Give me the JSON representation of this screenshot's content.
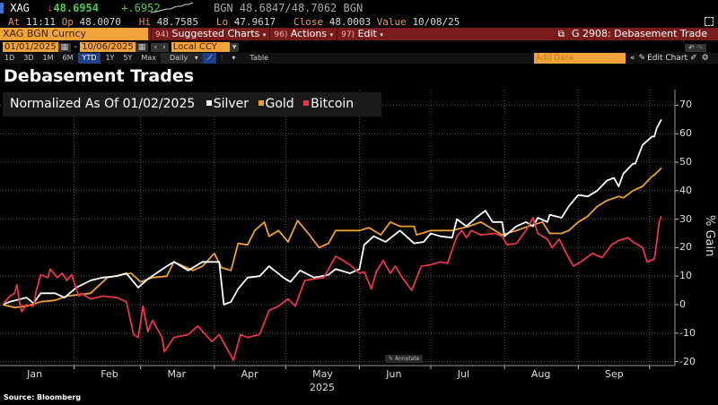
{
  "quote": {
    "ticker": "XAG",
    "direction_icon": "down-arrow-icon",
    "last": "48.6954",
    "change": "+.6952",
    "bid_source": "BGN",
    "bid_ask": "48.6847/48.7062",
    "ask_source": "BGN",
    "at_label": "At",
    "time": "11:11",
    "op_label": "Op",
    "open": "48.0070",
    "hi_label": "Hi",
    "high": "48.7585",
    "lo_label": "Lo",
    "low": "47.9617",
    "close_label": "Close",
    "close": "48.0003",
    "value_label": "Value",
    "value_date": "10/08/25"
  },
  "toolbar": {
    "security": "XAG BGN Curncy",
    "suggested_num": "94)",
    "suggested": "Suggested Charts",
    "actions_num": "96)",
    "actions": "Actions",
    "edit_num": "97)",
    "edit": "Edit",
    "chart_id": "G 2908: Debasement Trade"
  },
  "range": {
    "start": "01/01/2025",
    "end": "10/06/2025",
    "currency": "Local CCY",
    "sep": "-"
  },
  "periods": [
    "1D",
    "3D",
    "1M",
    "6M",
    "YTD",
    "1Y",
    "5Y",
    "Max"
  ],
  "selected_period": "YTD",
  "frequency": "Daily",
  "table_label": "Table",
  "add_data_placeholder": "Add Data",
  "edit_chart": "Edit Chart",
  "colors": {
    "silver": "#ffffff",
    "gold": "#f0a030",
    "bitcoin": "#e8364a",
    "toolbar_red": "#7b1c1c",
    "field_orange": "#f0a33a"
  },
  "source": "Source: Bloomberg",
  "annotate": "Annotate",
  "chart_data": {
    "type": "line",
    "title": "Debasement Trades",
    "subtitle": "Normalized As Of 01/02/2025",
    "ylabel": "% Gain",
    "xlabel": "2025",
    "ylim": [
      -20,
      70
    ],
    "yticks": [
      70,
      60,
      50,
      40,
      30,
      20,
      10,
      0,
      -10,
      -20
    ],
    "xticks": [
      "Jan",
      "Feb",
      "Mar",
      "Apr",
      "May",
      "Jun",
      "Jul",
      "Aug",
      "Sep"
    ],
    "grid": true,
    "legend": "top-left",
    "series": [
      {
        "name": "Silver",
        "color": "#ffffff",
        "points": [
          [
            "2025-01-02",
            0
          ],
          [
            "2025-01-05",
            1
          ],
          [
            "2025-01-12",
            2.5
          ],
          [
            "2025-01-15",
            0.5
          ],
          [
            "2025-01-18",
            4
          ],
          [
            "2025-01-24",
            4
          ],
          [
            "2025-01-28",
            2.5
          ],
          [
            "2025-02-02",
            6
          ],
          [
            "2025-02-08",
            8.5
          ],
          [
            "2025-02-13",
            9.5
          ],
          [
            "2025-02-19",
            10
          ],
          [
            "2025-02-23",
            11
          ],
          [
            "2025-02-28",
            6
          ],
          [
            "2025-03-04",
            9
          ],
          [
            "2025-03-12",
            13.5
          ],
          [
            "2025-03-15",
            15
          ],
          [
            "2025-03-21",
            12
          ],
          [
            "2025-03-27",
            15
          ],
          [
            "2025-03-31",
            15
          ],
          [
            "2025-04-03",
            15
          ],
          [
            "2025-04-05",
            0
          ],
          [
            "2025-04-08",
            1
          ],
          [
            "2025-04-11",
            5.5
          ],
          [
            "2025-04-15",
            9.5
          ],
          [
            "2025-04-20",
            10
          ],
          [
            "2025-04-24",
            13.5
          ],
          [
            "2025-04-30",
            9.5
          ],
          [
            "2025-05-03",
            8
          ],
          [
            "2025-05-07",
            12
          ],
          [
            "2025-05-13",
            9.5
          ],
          [
            "2025-05-19",
            10.5
          ],
          [
            "2025-05-22",
            12.5
          ],
          [
            "2025-05-28",
            11
          ],
          [
            "2025-06-01",
            12.5
          ],
          [
            "2025-06-03",
            21
          ],
          [
            "2025-06-07",
            24
          ],
          [
            "2025-06-12",
            22
          ],
          [
            "2025-06-18",
            26
          ],
          [
            "2025-06-24",
            21.5
          ],
          [
            "2025-06-28",
            22
          ],
          [
            "2025-07-01",
            25
          ],
          [
            "2025-07-05",
            24
          ],
          [
            "2025-07-10",
            23.5
          ],
          [
            "2025-07-12",
            30
          ],
          [
            "2025-07-16",
            27.5
          ],
          [
            "2025-07-20",
            30.5
          ],
          [
            "2025-07-24",
            33
          ],
          [
            "2025-07-27",
            29
          ],
          [
            "2025-07-31",
            29
          ],
          [
            "2025-08-01",
            24
          ],
          [
            "2025-08-06",
            27.5
          ],
          [
            "2025-08-10",
            29
          ],
          [
            "2025-08-13",
            27.5
          ],
          [
            "2025-08-15",
            30.5
          ],
          [
            "2025-08-19",
            29
          ],
          [
            "2025-08-20",
            31.5
          ],
          [
            "2025-08-25",
            30.5
          ],
          [
            "2025-08-28",
            34.5
          ],
          [
            "2025-09-01",
            38.5
          ],
          [
            "2025-09-05",
            38
          ],
          [
            "2025-09-09",
            40
          ],
          [
            "2025-09-13",
            43.5
          ],
          [
            "2025-09-16",
            44.5
          ],
          [
            "2025-09-18",
            41.5
          ],
          [
            "2025-09-20",
            46
          ],
          [
            "2025-09-24",
            49.5
          ],
          [
            "2025-09-25",
            49.5
          ],
          [
            "2025-09-28",
            56
          ],
          [
            "2025-10-02",
            59
          ],
          [
            "2025-10-03",
            59
          ],
          [
            "2025-10-04",
            62
          ],
          [
            "2025-10-06",
            65
          ]
        ]
      },
      {
        "name": "Gold",
        "color": "#f0a030",
        "points": [
          [
            "2025-01-02",
            0
          ],
          [
            "2025-01-07",
            -1
          ],
          [
            "2025-01-12",
            -0.5
          ],
          [
            "2025-01-18",
            1
          ],
          [
            "2025-01-24",
            1.5
          ],
          [
            "2025-01-29",
            3
          ],
          [
            "2025-02-08",
            4
          ],
          [
            "2025-02-15",
            9.5
          ],
          [
            "2025-02-21",
            10.5
          ],
          [
            "2025-02-25",
            11
          ],
          [
            "2025-03-01",
            8
          ],
          [
            "2025-03-06",
            9.5
          ],
          [
            "2025-03-12",
            10
          ],
          [
            "2025-03-15",
            15
          ],
          [
            "2025-03-23",
            12
          ],
          [
            "2025-03-27",
            13.5
          ],
          [
            "2025-04-01",
            18
          ],
          [
            "2025-04-04",
            13
          ],
          [
            "2025-04-08",
            12
          ],
          [
            "2025-04-11",
            21.5
          ],
          [
            "2025-04-15",
            21
          ],
          [
            "2025-04-18",
            26
          ],
          [
            "2025-04-22",
            29
          ],
          [
            "2025-04-24",
            24
          ],
          [
            "2025-04-28",
            26
          ],
          [
            "2025-05-02",
            22
          ],
          [
            "2025-05-06",
            29.5
          ],
          [
            "2025-05-11",
            24.5
          ],
          [
            "2025-05-15",
            20
          ],
          [
            "2025-05-19",
            21.5
          ],
          [
            "2025-05-22",
            26
          ],
          [
            "2025-05-28",
            26
          ],
          [
            "2025-06-01",
            26
          ],
          [
            "2025-06-05",
            27
          ],
          [
            "2025-06-10",
            24.5
          ],
          [
            "2025-06-14",
            29
          ],
          [
            "2025-06-18",
            27.5
          ],
          [
            "2025-06-24",
            27.5
          ],
          [
            "2025-06-25",
            24.5
          ],
          [
            "2025-07-01",
            26
          ],
          [
            "2025-07-05",
            26
          ],
          [
            "2025-07-10",
            26
          ],
          [
            "2025-07-17",
            27.5
          ],
          [
            "2025-07-22",
            29
          ],
          [
            "2025-07-26",
            27
          ],
          [
            "2025-07-31",
            24.5
          ],
          [
            "2025-08-06",
            26
          ],
          [
            "2025-08-11",
            27.5
          ],
          [
            "2025-08-17",
            29
          ],
          [
            "2025-08-20",
            25
          ],
          [
            "2025-08-25",
            25
          ],
          [
            "2025-08-28",
            26
          ],
          [
            "2025-09-01",
            29
          ],
          [
            "2025-09-05",
            31
          ],
          [
            "2025-09-09",
            34.5
          ],
          [
            "2025-09-13",
            36.5
          ],
          [
            "2025-09-18",
            38
          ],
          [
            "2025-09-20",
            37.5
          ],
          [
            "2025-09-24",
            40
          ],
          [
            "2025-09-28",
            41.5
          ],
          [
            "2025-10-02",
            45
          ],
          [
            "2025-10-03",
            45.5
          ],
          [
            "2025-10-06",
            48
          ]
        ]
      },
      {
        "name": "Bitcoin",
        "color": "#e8364a",
        "points": [
          [
            "2025-01-02",
            0
          ],
          [
            "2025-01-05",
            3
          ],
          [
            "2025-01-07",
            4
          ],
          [
            "2025-01-08",
            7
          ],
          [
            "2025-01-09",
            1
          ],
          [
            "2025-01-10",
            -2.5
          ],
          [
            "2025-01-12",
            0
          ],
          [
            "2025-01-15",
            -0.5
          ],
          [
            "2025-01-16",
            4.5
          ],
          [
            "2025-01-18",
            10.5
          ],
          [
            "2025-01-21",
            9.5
          ],
          [
            "2025-01-22",
            12.5
          ],
          [
            "2025-01-25",
            9.5
          ],
          [
            "2025-01-27",
            11
          ],
          [
            "2025-01-29",
            8.5
          ],
          [
            "2025-01-31",
            10.5
          ],
          [
            "2025-02-03",
            3
          ],
          [
            "2025-02-04",
            4
          ],
          [
            "2025-02-08",
            2
          ],
          [
            "2025-02-13",
            3
          ],
          [
            "2025-02-19",
            2.5
          ],
          [
            "2025-02-23",
            1
          ],
          [
            "2025-02-26",
            -10.5
          ],
          [
            "2025-02-28",
            -11.5
          ],
          [
            "2025-03-02",
            -0.5
          ],
          [
            "2025-03-04",
            -9.5
          ],
          [
            "2025-03-06",
            -5.5
          ],
          [
            "2025-03-10",
            -11.5
          ],
          [
            "2025-03-11",
            -16.5
          ],
          [
            "2025-03-15",
            -11.5
          ],
          [
            "2025-03-21",
            -10.5
          ],
          [
            "2025-03-25",
            -7.5
          ],
          [
            "2025-03-31",
            -13
          ],
          [
            "2025-04-03",
            -10.5
          ],
          [
            "2025-04-07",
            -16.5
          ],
          [
            "2025-04-09",
            -19.5
          ],
          [
            "2025-04-12",
            -10.5
          ],
          [
            "2025-04-15",
            -11.5
          ],
          [
            "2025-04-20",
            -10.5
          ],
          [
            "2025-04-24",
            -2
          ],
          [
            "2025-04-28",
            -0.5
          ],
          [
            "2025-05-02",
            2
          ],
          [
            "2025-05-05",
            -0.5
          ],
          [
            "2025-05-09",
            8.5
          ],
          [
            "2025-05-13",
            9
          ],
          [
            "2025-05-17",
            9.5
          ],
          [
            "2025-05-22",
            17
          ],
          [
            "2025-05-26",
            15
          ],
          [
            "2025-05-28",
            14
          ],
          [
            "2025-06-01",
            11
          ],
          [
            "2025-06-03",
            11.5
          ],
          [
            "2025-06-06",
            5.5
          ],
          [
            "2025-06-08",
            11.5
          ],
          [
            "2025-06-11",
            15.5
          ],
          [
            "2025-06-14",
            11
          ],
          [
            "2025-06-16",
            13.5
          ],
          [
            "2025-06-19",
            9.5
          ],
          [
            "2025-06-23",
            5
          ],
          [
            "2025-06-27",
            13.5
          ],
          [
            "2025-07-01",
            14
          ],
          [
            "2025-07-05",
            15
          ],
          [
            "2025-07-08",
            14.5
          ],
          [
            "2025-07-12",
            24
          ],
          [
            "2025-07-14",
            26
          ],
          [
            "2025-07-16",
            23.5
          ],
          [
            "2025-07-18",
            26
          ],
          [
            "2025-07-22",
            24.5
          ],
          [
            "2025-07-28",
            25
          ],
          [
            "2025-07-31",
            24
          ],
          [
            "2025-08-02",
            21
          ],
          [
            "2025-08-06",
            21.5
          ],
          [
            "2025-08-10",
            26
          ],
          [
            "2025-08-13",
            30.5
          ],
          [
            "2025-08-15",
            25
          ],
          [
            "2025-08-19",
            23
          ],
          [
            "2025-08-21",
            20
          ],
          [
            "2025-08-24",
            23
          ],
          [
            "2025-08-27",
            18
          ],
          [
            "2025-08-30",
            13.5
          ],
          [
            "2025-09-02",
            15
          ],
          [
            "2025-09-07",
            18
          ],
          [
            "2025-09-11",
            16.5
          ],
          [
            "2025-09-15",
            21
          ],
          [
            "2025-09-18",
            22.5
          ],
          [
            "2025-09-22",
            23.5
          ],
          [
            "2025-09-24",
            22
          ],
          [
            "2025-09-28",
            20
          ],
          [
            "2025-09-30",
            15
          ],
          [
            "2025-10-03",
            16
          ],
          [
            "2025-10-04",
            22
          ],
          [
            "2025-10-05",
            29
          ],
          [
            "2025-10-06",
            31
          ]
        ]
      }
    ]
  }
}
